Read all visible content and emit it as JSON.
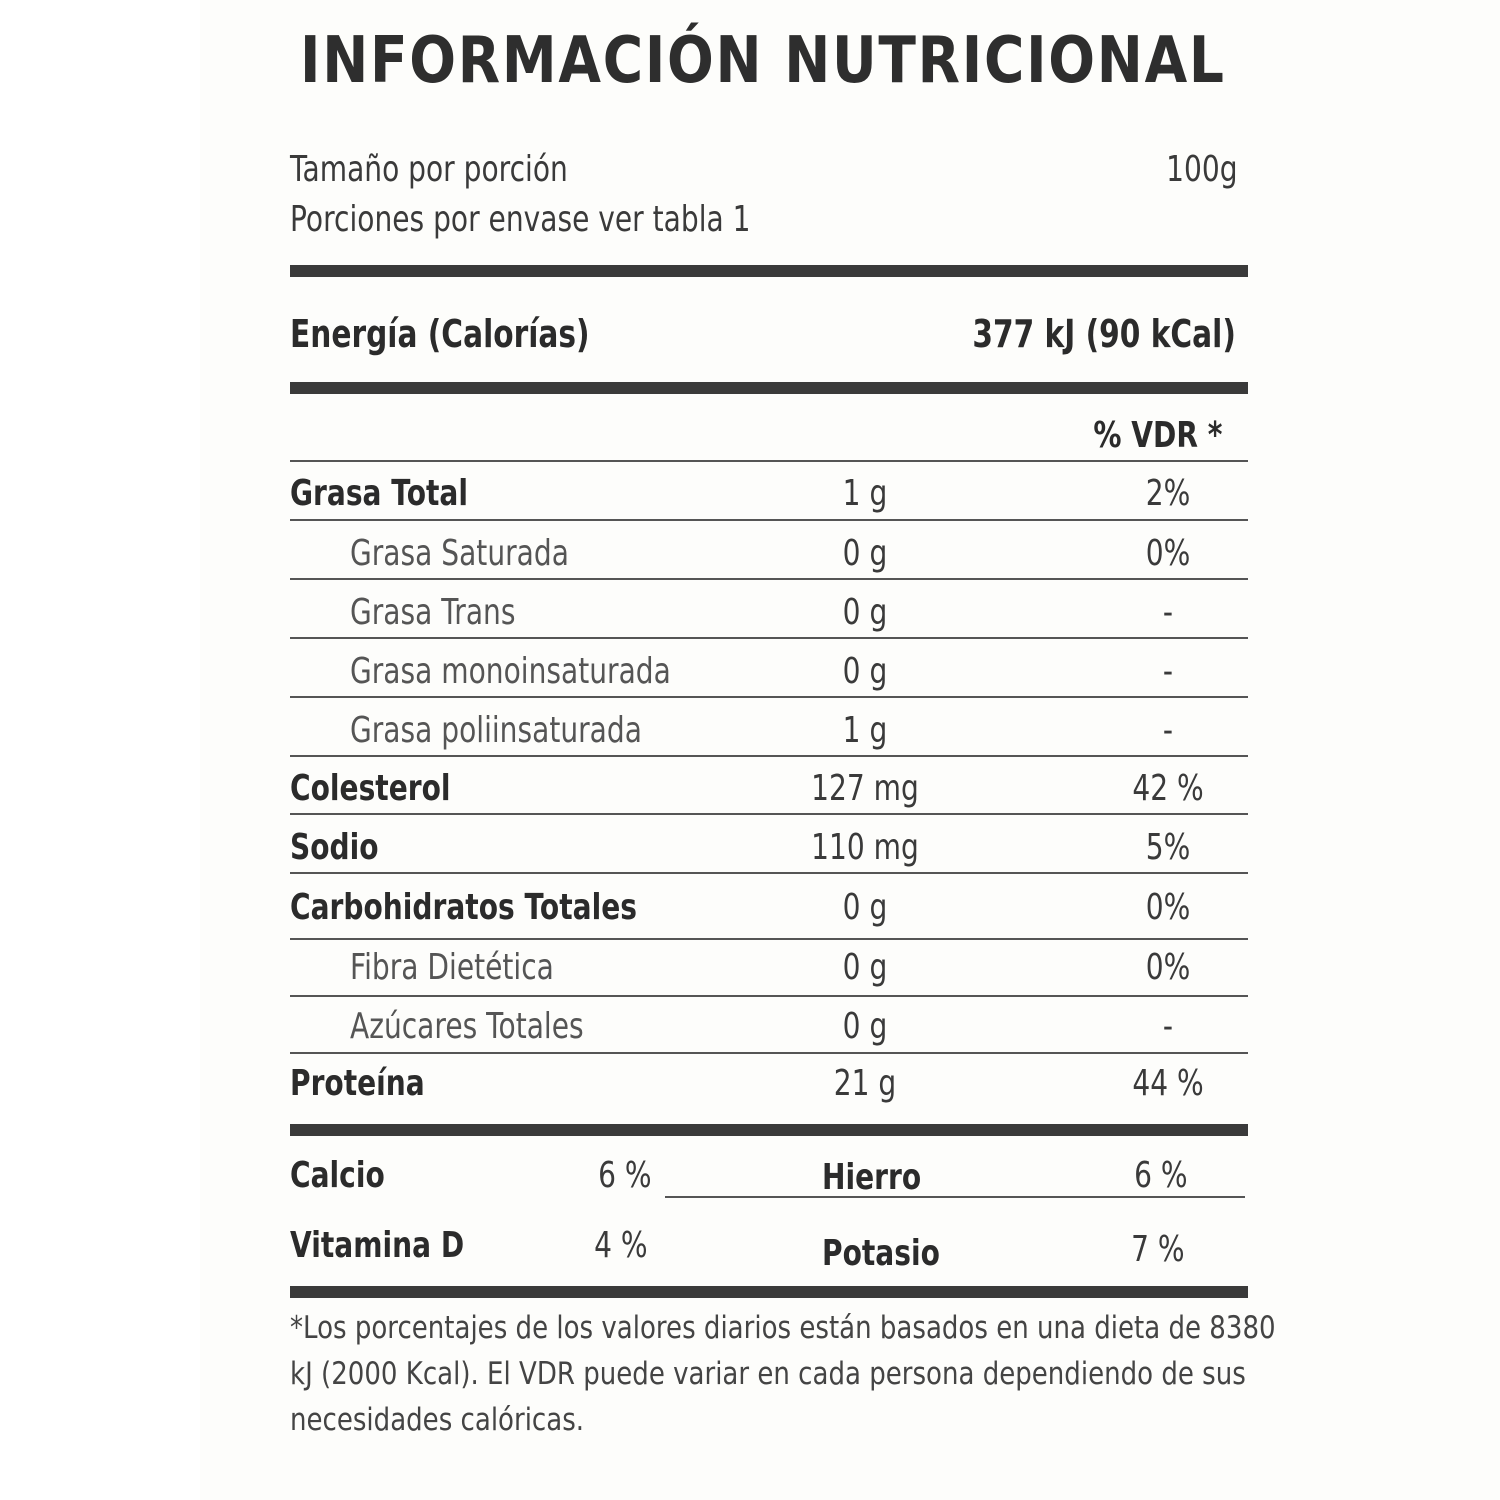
{
  "title": "INFORMACIÓN NUTRICIONAL",
  "serving": {
    "size_label": "Tamaño por porción",
    "size_value": "100g",
    "servings_label": "Porciones por envase ver tabla 1"
  },
  "energy": {
    "label": "Energía (Calorías)",
    "value": "377 kJ (90 kCal)"
  },
  "vdr_header": "% VDR *",
  "nutrients": [
    {
      "label": "Grasa Total",
      "amount": "1 g",
      "vdr": "2%"
    },
    {
      "label": "Grasa Saturada",
      "amount": "0 g",
      "vdr": "0%"
    },
    {
      "label": "Grasa Trans",
      "amount": "0 g",
      "vdr": "-"
    },
    {
      "label": "Grasa monoinsaturada",
      "amount": "0 g",
      "vdr": "-"
    },
    {
      "label": "Grasa poliinsaturada",
      "amount": "1 g",
      "vdr": "-"
    },
    {
      "label": "Colesterol",
      "amount": "127 mg",
      "vdr": "42 %"
    },
    {
      "label": "Sodio",
      "amount": "110 mg",
      "vdr": "5%"
    },
    {
      "label": "Carbohidratos Totales",
      "amount": "0 g",
      "vdr": "0%"
    },
    {
      "label": "Fibra Dietética",
      "amount": "0 g",
      "vdr": "0%"
    },
    {
      "label": "Azúcares Totales",
      "amount": "0 g",
      "vdr": "-"
    },
    {
      "label": "Proteína",
      "amount": "21 g",
      "vdr": "44 %"
    }
  ],
  "minerals": [
    {
      "label": "Calcio",
      "value": "6 %"
    },
    {
      "label": "Hierro",
      "value": "6 %"
    },
    {
      "label": "Vitamina D",
      "value": "4 %"
    },
    {
      "label": "Potasio",
      "value": "7 %"
    }
  ],
  "footnote": "*Los porcentajes de los valores diarios están basados en una dieta de 8380 kJ (2000 Kcal). El VDR puede variar en cada persona dependiendo de sus necesidades calóricas."
}
